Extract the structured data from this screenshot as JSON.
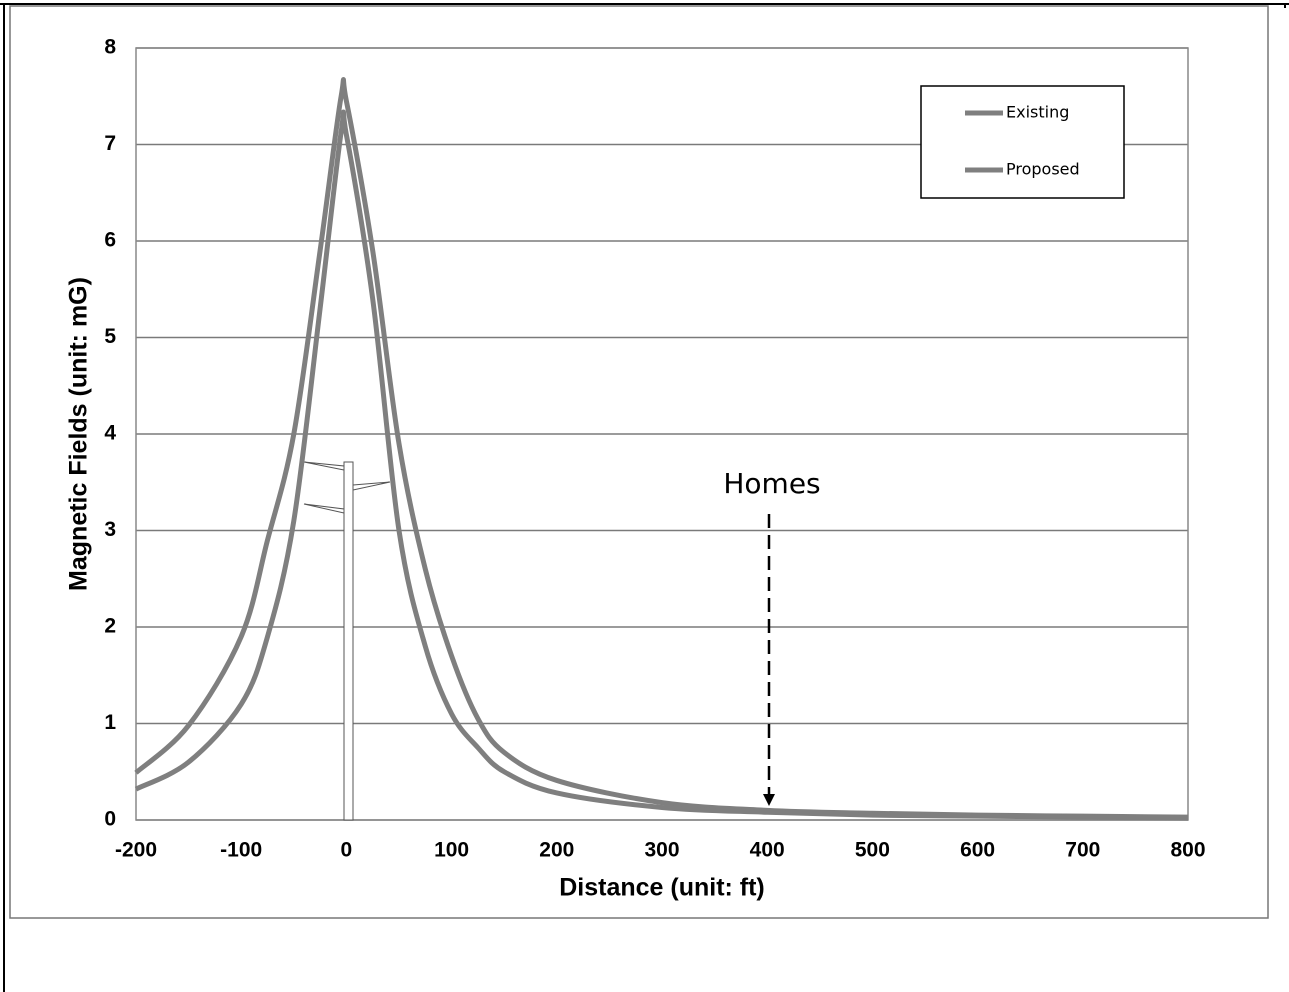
{
  "chart_data": {
    "type": "line",
    "x_label": "Distance (unit: ft)",
    "y_label": "Magnetic Fields (unit: mG)",
    "annotation": "Homes",
    "x": [
      -200,
      -150,
      -100,
      -75,
      -50,
      -25,
      -5,
      0,
      25,
      50,
      75,
      100,
      125,
      150,
      200,
      300,
      400,
      500,
      600,
      700,
      800
    ],
    "series": [
      {
        "name": "Existing",
        "color": "#7f7f7f",
        "values": [
          0.49,
          0.98,
          1.9,
          2.9,
          4.0,
          5.9,
          7.5,
          7.45,
          5.9,
          3.9,
          2.6,
          1.7,
          1.05,
          0.7,
          0.41,
          0.18,
          0.1,
          0.07,
          0.05,
          0.04,
          0.03
        ]
      },
      {
        "name": "Proposed",
        "color": "#7f7f7f",
        "values": [
          0.32,
          0.6,
          1.2,
          1.9,
          3.1,
          5.3,
          7.13,
          7.1,
          5.4,
          3.0,
          1.8,
          1.1,
          0.75,
          0.5,
          0.28,
          0.13,
          0.08,
          0.05,
          0.04,
          0.03,
          0.02
        ]
      }
    ],
    "xlim": [
      -200,
      800
    ],
    "xticks": [
      -200,
      -100,
      0,
      100,
      200,
      300,
      400,
      500,
      600,
      700,
      800
    ],
    "ylim": [
      0,
      8
    ],
    "yticks": [
      0,
      1,
      2,
      3,
      4,
      5,
      6,
      7,
      8
    ],
    "grid": true
  }
}
